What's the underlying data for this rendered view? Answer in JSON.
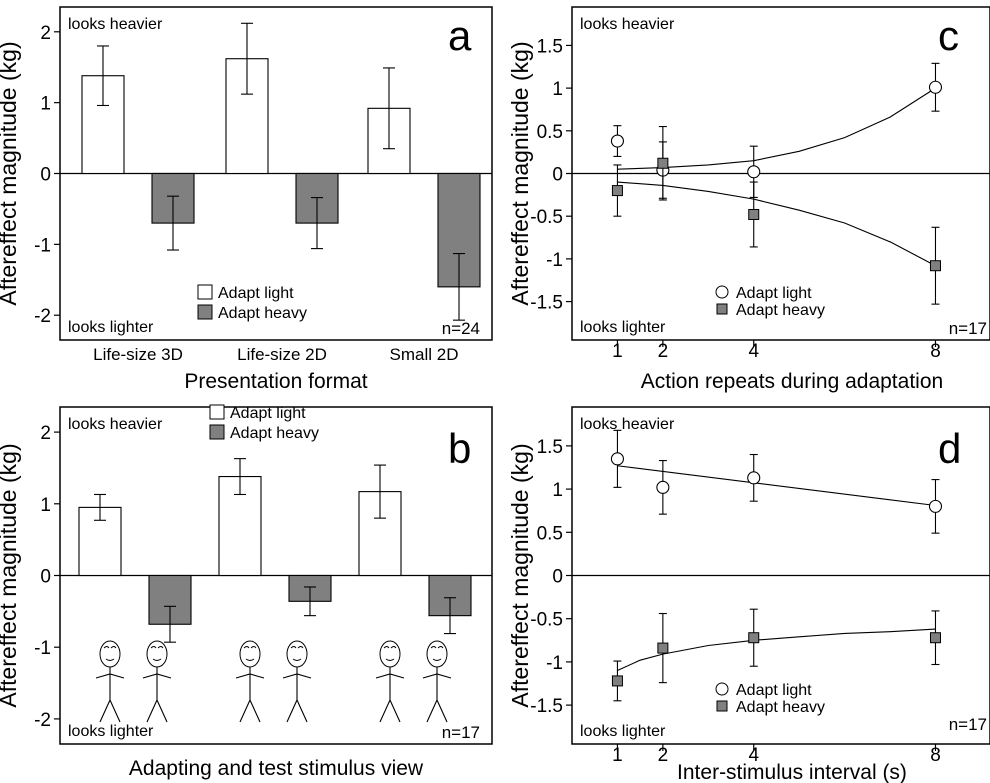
{
  "colors": {
    "light": "#ffffff",
    "heavy": "#808080",
    "line": "#000000"
  },
  "icons": [
    "stick-figure-icon"
  ],
  "chart_data": [
    {
      "id": "a",
      "type": "bar",
      "panel_label": "a",
      "ylabel": "Aftereffect magnitude (kg)",
      "xlabel": "Presentation format",
      "ylim": [
        -2.35,
        2.35
      ],
      "yticks": [
        -2,
        -1,
        0,
        1,
        2
      ],
      "categories": [
        "Life-size 3D",
        "Life-size 2D",
        "Small 2D"
      ],
      "series": [
        {
          "name": "Adapt light",
          "values": [
            1.38,
            1.62,
            0.92
          ],
          "err": [
            0.42,
            0.5,
            0.57
          ]
        },
        {
          "name": "Adapt heavy",
          "values": [
            -0.7,
            -0.7,
            -1.6
          ],
          "err": [
            0.38,
            0.36,
            0.47
          ]
        }
      ],
      "top_note": "looks heavier",
      "bottom_note": "looks lighter",
      "n_label": "n=24",
      "legend_position": "bottom-center"
    },
    {
      "id": "b",
      "type": "bar",
      "panel_label": "b",
      "ylabel": "Aftereffect magnitude (kg)",
      "xlabel": "Adapting and test stimulus view",
      "ylim": [
        -2.35,
        2.35
      ],
      "yticks": [
        -2,
        -1,
        0,
        1,
        2
      ],
      "categories": [
        "",
        "",
        ""
      ],
      "series": [
        {
          "name": "Adapt light",
          "values": [
            0.95,
            1.38,
            1.17
          ],
          "err": [
            0.18,
            0.25,
            0.37
          ]
        },
        {
          "name": "Adapt heavy",
          "values": [
            -0.68,
            -0.36,
            -0.56
          ],
          "err": [
            0.25,
            0.2,
            0.25
          ]
        }
      ],
      "top_note": "looks heavier",
      "bottom_note": "looks lighter",
      "n_label": "n=17",
      "legend_position": "top-center"
    },
    {
      "id": "c",
      "type": "scatter",
      "panel_label": "c",
      "ylabel": "Aftereffect magnitude (kg)",
      "xlabel": "Action repeats during adaptation",
      "xlim": [
        0,
        9.2
      ],
      "ylim": [
        -1.95,
        1.95
      ],
      "xticks": [
        1,
        2,
        4,
        8
      ],
      "yticks": [
        -1.5,
        -1,
        -0.5,
        0,
        0.5,
        1,
        1.5
      ],
      "series": [
        {
          "name": "Adapt light",
          "x": [
            1,
            2,
            4,
            8
          ],
          "y": [
            0.38,
            0.04,
            0.02,
            1.01
          ],
          "err": [
            0.18,
            0.33,
            0.3,
            0.28
          ],
          "fit": {
            "x": [
              1,
              2,
              3,
              4,
              5,
              6,
              7,
              8
            ],
            "y": [
              0.05,
              0.07,
              0.1,
              0.15,
              0.26,
              0.42,
              0.66,
              1.0
            ]
          }
        },
        {
          "name": "Adapt heavy",
          "x": [
            1,
            2,
            4,
            8
          ],
          "y": [
            -0.2,
            0.12,
            -0.48,
            -1.08
          ],
          "err": [
            0.3,
            0.43,
            0.38,
            0.45
          ],
          "fit": {
            "x": [
              1,
              2,
              3,
              4,
              5,
              6,
              7,
              8
            ],
            "y": [
              -0.1,
              -0.14,
              -0.21,
              -0.3,
              -0.43,
              -0.58,
              -0.8,
              -1.08
            ]
          }
        }
      ],
      "top_note": "looks heavier",
      "bottom_note": "looks lighter",
      "n_label": "n=17",
      "legend_position": "bottom-center"
    },
    {
      "id": "d",
      "type": "scatter",
      "panel_label": "d",
      "ylabel": "Aftereffect magnitude (kg)",
      "xlabel": "Inter-stimulus interval (s)",
      "xlim": [
        0,
        9.2
      ],
      "ylim": [
        -1.95,
        1.95
      ],
      "xticks": [
        1,
        2,
        4,
        8
      ],
      "yticks": [
        -1.5,
        -1,
        -0.5,
        0,
        0.5,
        1,
        1.5
      ],
      "series": [
        {
          "name": "Adapt light",
          "x": [
            1,
            2,
            4,
            8
          ],
          "y": [
            1.35,
            1.02,
            1.13,
            0.8
          ],
          "err": [
            0.33,
            0.31,
            0.27,
            0.31
          ],
          "fit": {
            "x": [
              1,
              8
            ],
            "y": [
              1.27,
              0.81
            ]
          }
        },
        {
          "name": "Adapt heavy",
          "x": [
            1,
            2,
            4,
            8
          ],
          "y": [
            -1.22,
            -0.84,
            -0.72,
            -0.72
          ],
          "err": [
            0.23,
            0.4,
            0.33,
            0.31
          ],
          "fit": {
            "x": [
              1,
              1.5,
              2,
              3,
              4,
              5,
              6,
              7,
              8
            ],
            "y": [
              -1.1,
              -0.98,
              -0.91,
              -0.81,
              -0.75,
              -0.71,
              -0.67,
              -0.65,
              -0.62
            ]
          }
        }
      ],
      "top_note": "looks heavier",
      "bottom_note": "looks lighter",
      "n_label": "n=17",
      "legend_position": "bottom-center"
    }
  ]
}
